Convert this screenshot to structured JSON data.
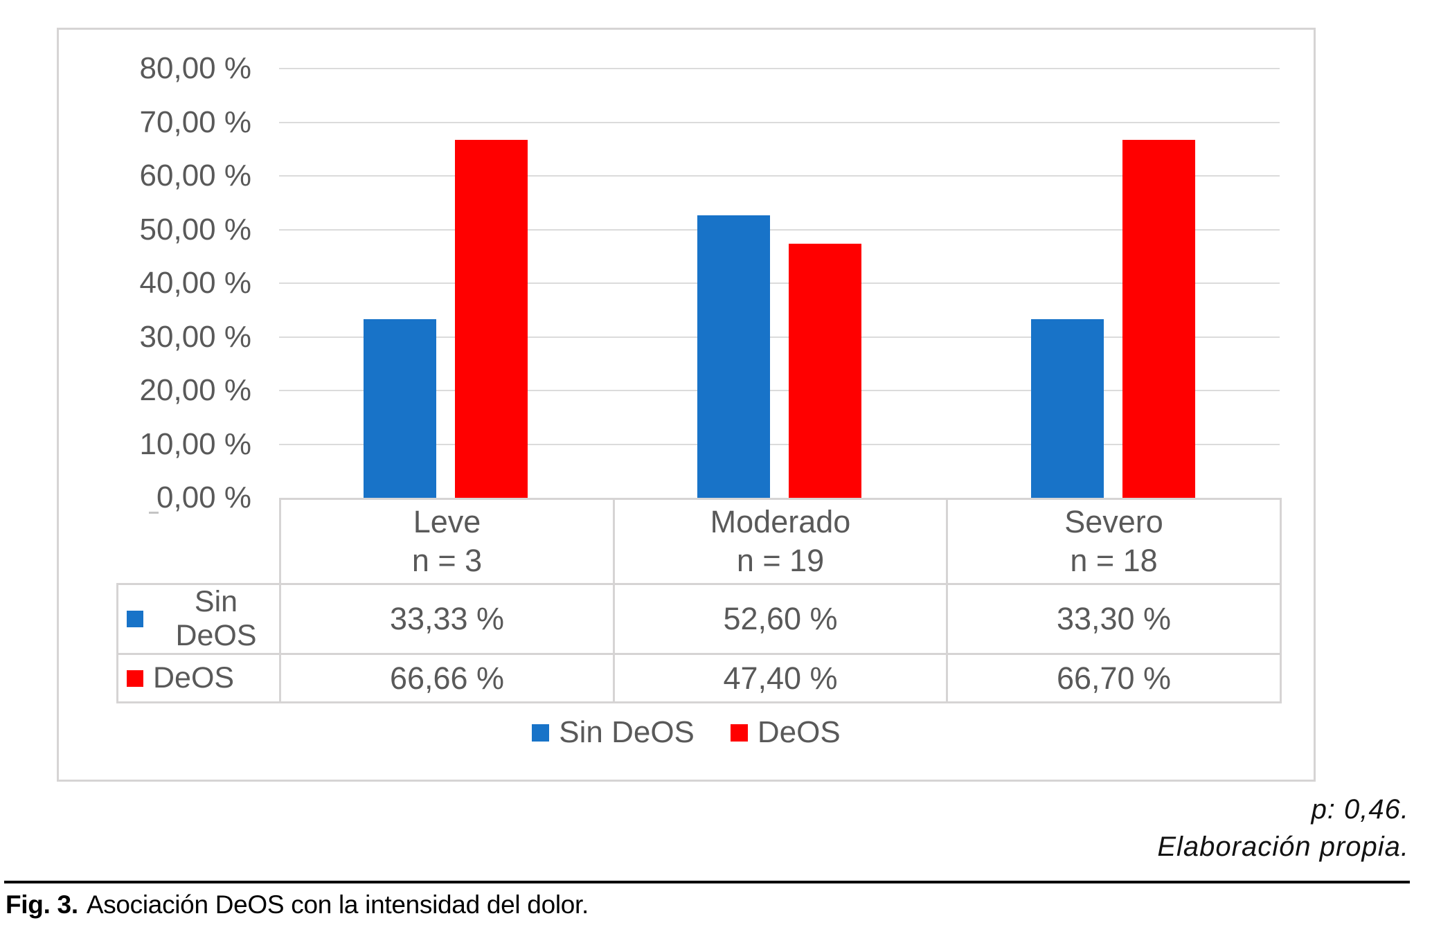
{
  "chart_data": {
    "type": "bar",
    "title": "",
    "categories": [
      "Leve",
      "Moderado",
      "Severo"
    ],
    "category_ns": [
      "n = 3",
      "n = 19",
      "n = 18"
    ],
    "series": [
      {
        "name": "Sin DeOS",
        "color": "#1873C8",
        "values": [
          33.33,
          52.6,
          33.3
        ],
        "value_labels": [
          "33,33 %",
          "52,60 %",
          "33,30 %"
        ]
      },
      {
        "name": "DeOS",
        "color": "#FF0000",
        "values": [
          66.66,
          47.4,
          66.7
        ],
        "value_labels": [
          "66,66 %",
          "47,40 %",
          "66,70 %"
        ]
      }
    ],
    "xlabel": "",
    "ylabel": "",
    "ylim": [
      0,
      80
    ],
    "ytick_step": 10,
    "ytick_labels": [
      "0,00 %",
      "10,00 %",
      "20,00 %",
      "30,00 %",
      "40,00 %",
      "50,00 %",
      "60,00 %",
      "70,00 %",
      "80,00 %"
    ],
    "grid": true,
    "legend_position": "bottom-center",
    "data_table_shown": true
  },
  "annotations": {
    "p_value": "p: 0,46.",
    "source": "Elaboración propia."
  },
  "caption": {
    "label": "Fig. 3.",
    "text": "Asociación DeOS con la intensidad del dolor."
  }
}
